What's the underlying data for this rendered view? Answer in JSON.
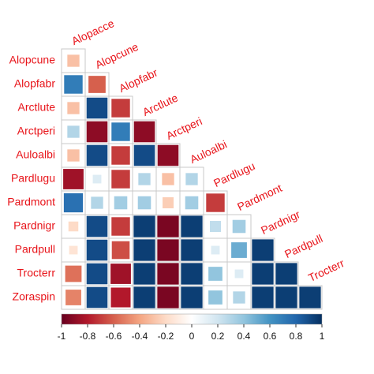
{
  "chart_data": {
    "type": "corrplot",
    "variables": [
      "Alopacce",
      "Alopcune",
      "Alopfabr",
      "Arctlute",
      "Arctperi",
      "Auloalbi",
      "Pardlugu",
      "Pardmont",
      "Pardnigr",
      "Pardpull",
      "Trocterr",
      "Zoraspin"
    ],
    "matrix": [
      [
        -0.3
      ],
      [
        0.7,
        -0.6
      ],
      [
        -0.3,
        0.9,
        -0.7
      ],
      [
        0.3,
        -0.9,
        0.7,
        -0.9
      ],
      [
        -0.3,
        0.9,
        -0.7,
        0.9,
        -0.9
      ],
      [
        -0.85,
        0.15,
        -0.7,
        0.3,
        -0.3,
        0.3
      ],
      [
        0.75,
        0.3,
        0.35,
        0.35,
        -0.25,
        0.35,
        -0.7
      ],
      [
        -0.2,
        0.9,
        -0.7,
        0.95,
        -0.95,
        0.95,
        0.25,
        0.35
      ],
      [
        -0.15,
        0.9,
        -0.65,
        0.95,
        -0.95,
        0.95,
        0.15,
        0.5,
        0.95
      ],
      [
        -0.55,
        0.9,
        -0.85,
        0.95,
        -0.95,
        0.95,
        0.4,
        0.15,
        0.95,
        0.95
      ],
      [
        -0.5,
        0.9,
        -0.8,
        0.95,
        -0.95,
        0.95,
        0.4,
        0.3,
        0.95,
        0.95,
        0.95
      ]
    ],
    "colors": [
      "#67001F",
      "#B2182B",
      "#D6604D",
      "#F4A582",
      "#FDDBC7",
      "#FFFFFF",
      "#D1E5F0",
      "#92C5DE",
      "#4393C3",
      "#2166AC",
      "#053061"
    ],
    "clim": [
      -1,
      1
    ],
    "cticks": [
      -1,
      -0.8,
      -0.6,
      -0.4,
      -0.2,
      0,
      0.2,
      0.4,
      0.6,
      0.8,
      1
    ]
  }
}
